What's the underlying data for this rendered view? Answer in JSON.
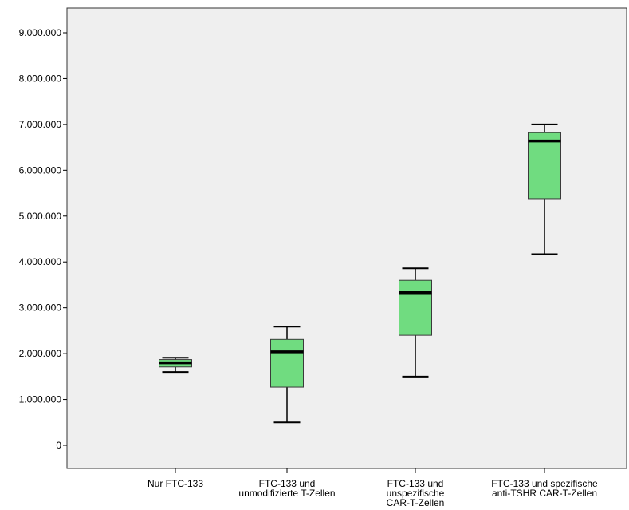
{
  "chart_data": {
    "type": "boxplot",
    "title": "",
    "xlabel": "",
    "ylabel": "",
    "ylim": [
      -200000,
      9500000
    ],
    "y_ticks": [
      0,
      1000000,
      2000000,
      3000000,
      4000000,
      5000000,
      6000000,
      7000000,
      8000000,
      9000000
    ],
    "y_tick_labels": [
      "0",
      "1.000.000",
      "2.000.000",
      "3.000.000",
      "4.000.000",
      "5.000.000",
      "6.000.000",
      "7.000.000",
      "8.000.000",
      "9.000.000"
    ],
    "grid": false,
    "categories": [
      [
        "Nur FTC-133"
      ],
      [
        "FTC-133 und",
        "unmodifizierte T-Zellen"
      ],
      [
        "FTC-133 und",
        "unspezifische",
        "CAR-T-Zellen"
      ],
      [
        "FTC-133 und spezifische",
        "anti-TSHR CAR-T-Zellen"
      ]
    ],
    "boxes": [
      {
        "min": 1600000,
        "q1": 1710000,
        "median": 1800000,
        "q3": 1870000,
        "max": 1910000
      },
      {
        "min": 500000,
        "q1": 1270000,
        "median": 2040000,
        "q3": 2310000,
        "max": 2590000
      },
      {
        "min": 1500000,
        "q1": 2400000,
        "median": 3330000,
        "q3": 3600000,
        "max": 3860000
      },
      {
        "min": 4170000,
        "q1": 5380000,
        "median": 6640000,
        "q3": 6820000,
        "max": 7000000
      }
    ],
    "colors": {
      "box_fill": "#70dc80",
      "box_stroke": "#3a3a3a",
      "median": "#000000",
      "plot_background": "#efefef",
      "page_background": "#ffffff"
    }
  }
}
